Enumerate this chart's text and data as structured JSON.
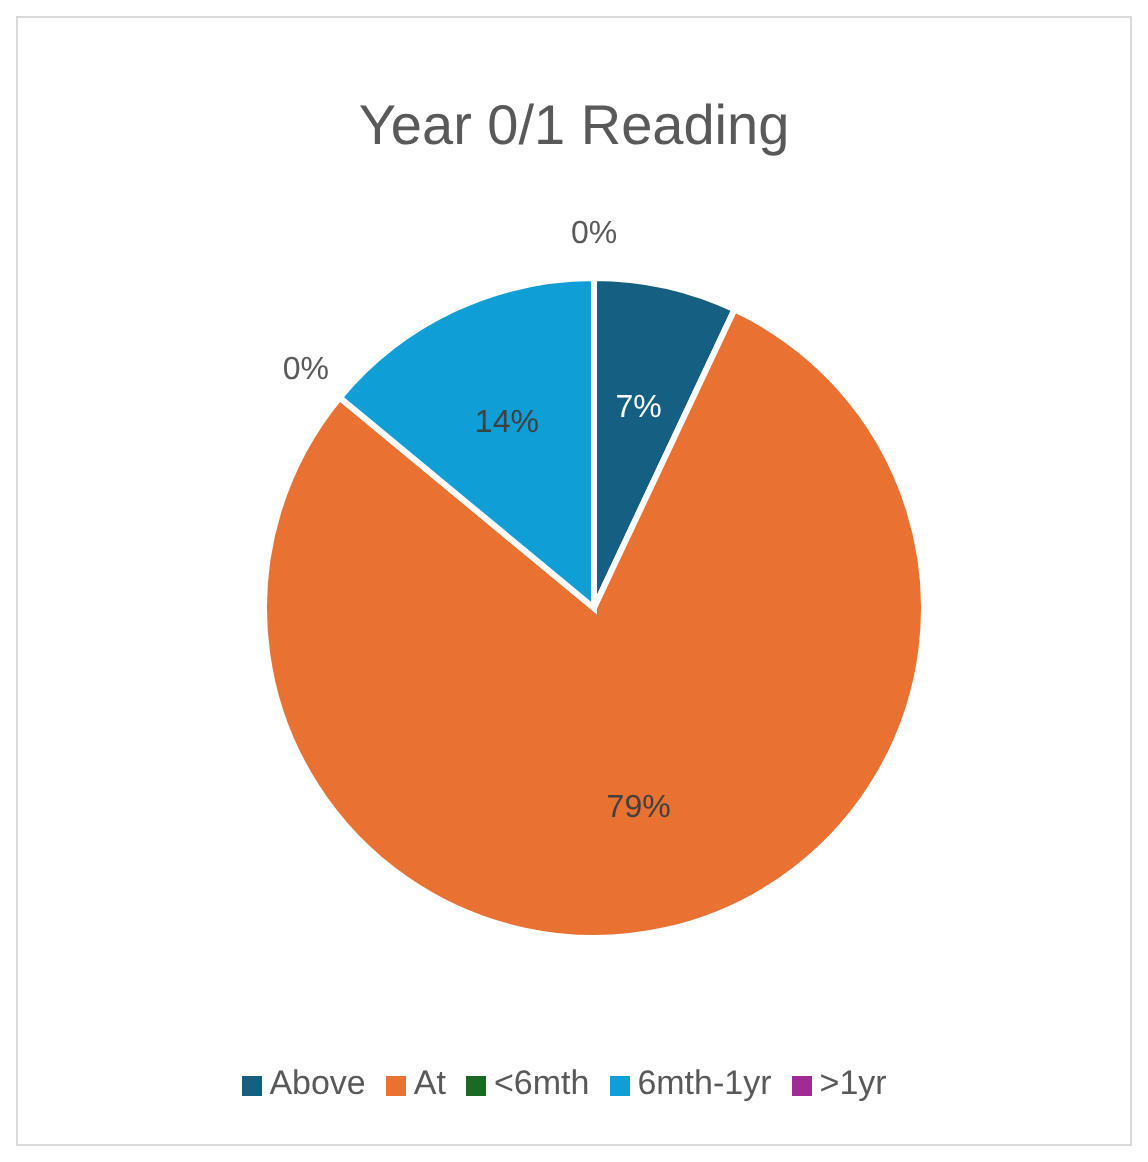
{
  "chart_data": {
    "type": "pie",
    "title": "Year 0/1 Reading",
    "categories": [
      "Above",
      "At",
      "<6mth",
      "6mth-1yr",
      ">1yr"
    ],
    "values": [
      7,
      79,
      0,
      14,
      0
    ],
    "colors": [
      "#156082",
      "#e97132",
      "#196b24",
      "#0f9ed5",
      "#a02b93"
    ],
    "value_labels": [
      "7%",
      "79%",
      "0%",
      "14%",
      "0%"
    ],
    "legend": "bottom"
  }
}
